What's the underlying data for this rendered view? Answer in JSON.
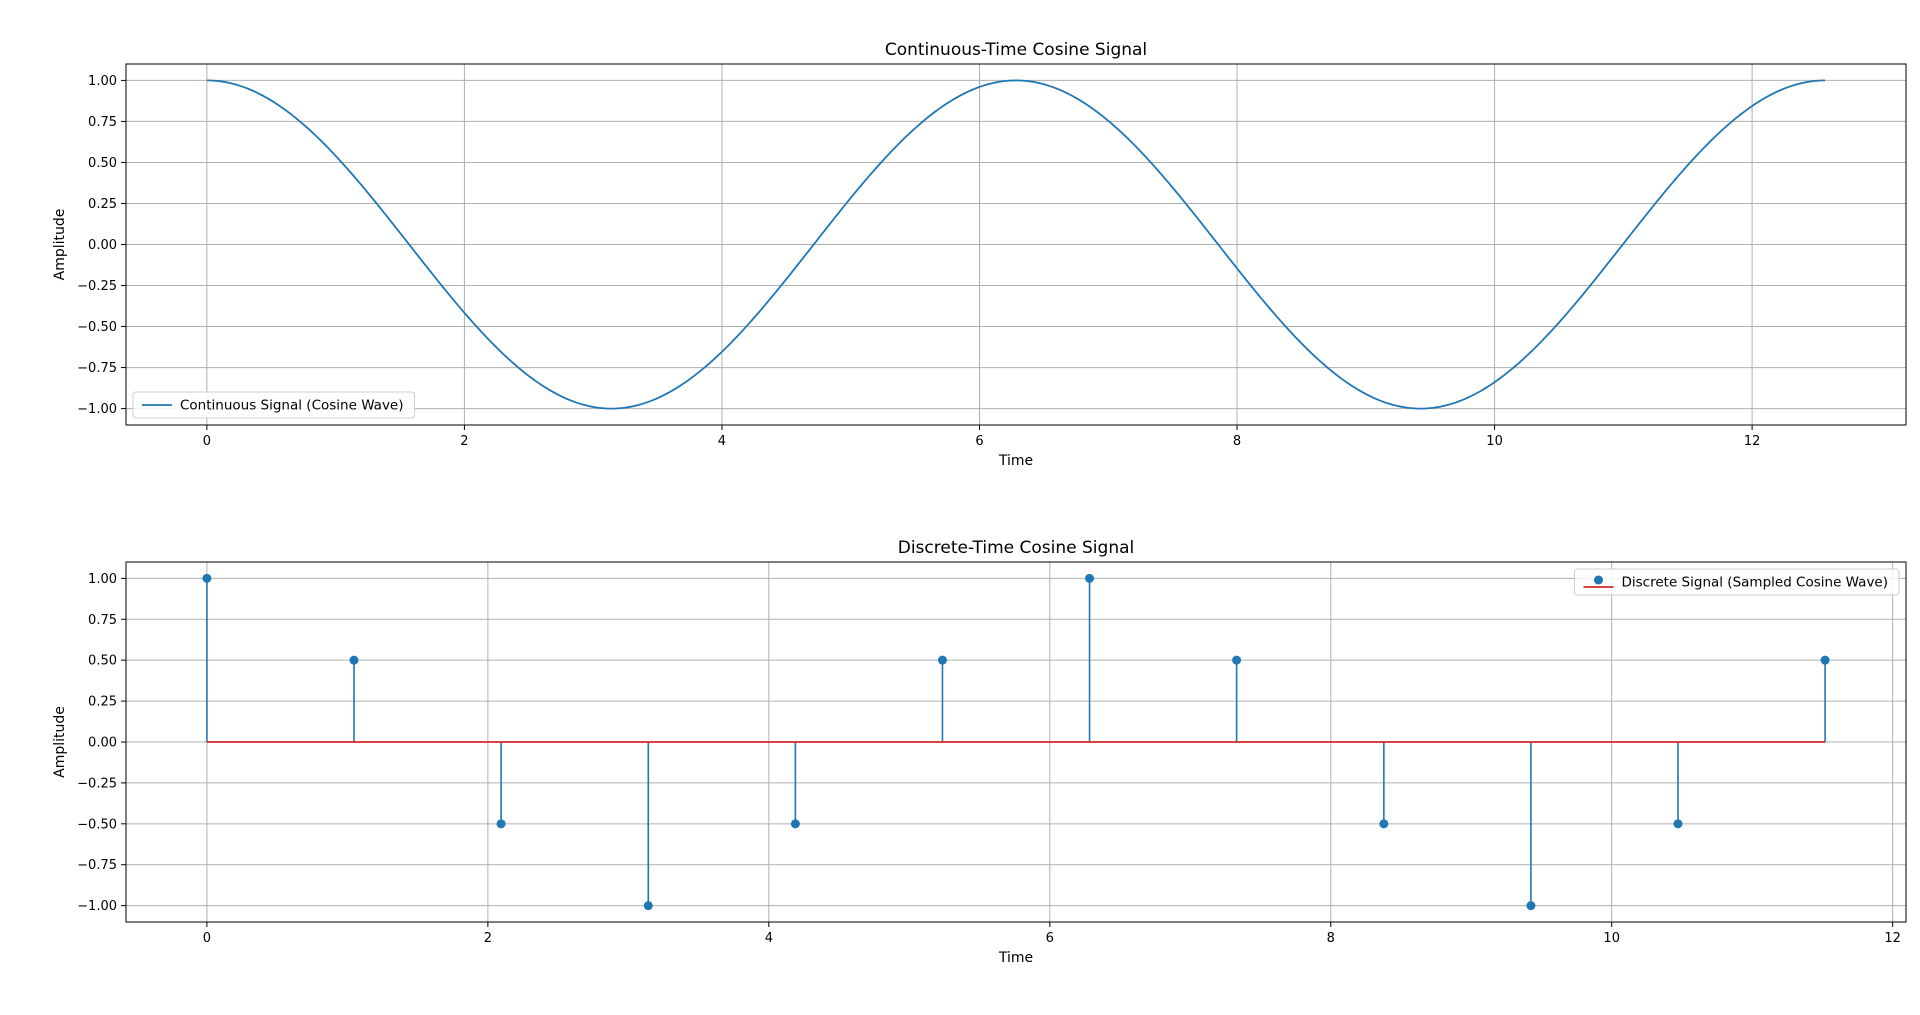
{
  "chart_data": [
    {
      "type": "line",
      "title": "Continuous-Time Cosine Signal",
      "xlabel": "Time",
      "ylabel": "Amplitude",
      "xlim": [
        -0.628,
        13.195
      ],
      "ylim": [
        -1.1,
        1.1
      ],
      "xticks": [
        0,
        2,
        4,
        6,
        8,
        10,
        12
      ],
      "xtick_labels": [
        "0",
        "2",
        "4",
        "6",
        "8",
        "10",
        "12"
      ],
      "yticks": [
        -1,
        -0.75,
        -0.5,
        -0.25,
        0,
        0.25,
        0.5,
        0.75,
        1
      ],
      "ytick_labels": [
        "−1.00",
        "−0.75",
        "−0.50",
        "−0.25",
        "0.00",
        "0.25",
        "0.50",
        "0.75",
        "1.00"
      ],
      "grid": true,
      "legend_position": "lower-left",
      "series": [
        {
          "name": "Continuous Signal (Cosine Wave)",
          "function": "cos(t)",
          "x_range": [
            0,
            12.566
          ],
          "color": "#1f77b4"
        }
      ]
    },
    {
      "type": "stem",
      "title": "Discrete-Time Cosine Signal",
      "xlabel": "Time",
      "ylabel": "Amplitude",
      "xlim": [
        -0.576,
        12.095
      ],
      "ylim": [
        -1.1,
        1.1
      ],
      "xticks": [
        0,
        2,
        4,
        6,
        8,
        10,
        12
      ],
      "xtick_labels": [
        "0",
        "2",
        "4",
        "6",
        "8",
        "10",
        "12"
      ],
      "yticks": [
        -1,
        -0.75,
        -0.5,
        -0.25,
        0,
        0.25,
        0.5,
        0.75,
        1
      ],
      "ytick_labels": [
        "−1.00",
        "−0.75",
        "−0.50",
        "−0.25",
        "0.00",
        "0.25",
        "0.50",
        "0.75",
        "1.00"
      ],
      "grid": true,
      "legend_position": "upper-right",
      "baseline": 0,
      "baseline_color": "#d62728",
      "series": [
        {
          "name": "Discrete Signal (Sampled Cosine Wave)",
          "x": [
            0,
            1.047,
            2.094,
            3.142,
            4.189,
            5.236,
            6.283,
            7.33,
            8.378,
            9.425,
            10.472,
            11.519
          ],
          "y": [
            1.0,
            0.5,
            -0.5,
            -1.0,
            -0.5,
            0.5,
            1.0,
            0.5,
            -0.5,
            -1.0,
            -0.5,
            0.5
          ],
          "color": "#1f77b4"
        }
      ]
    }
  ]
}
